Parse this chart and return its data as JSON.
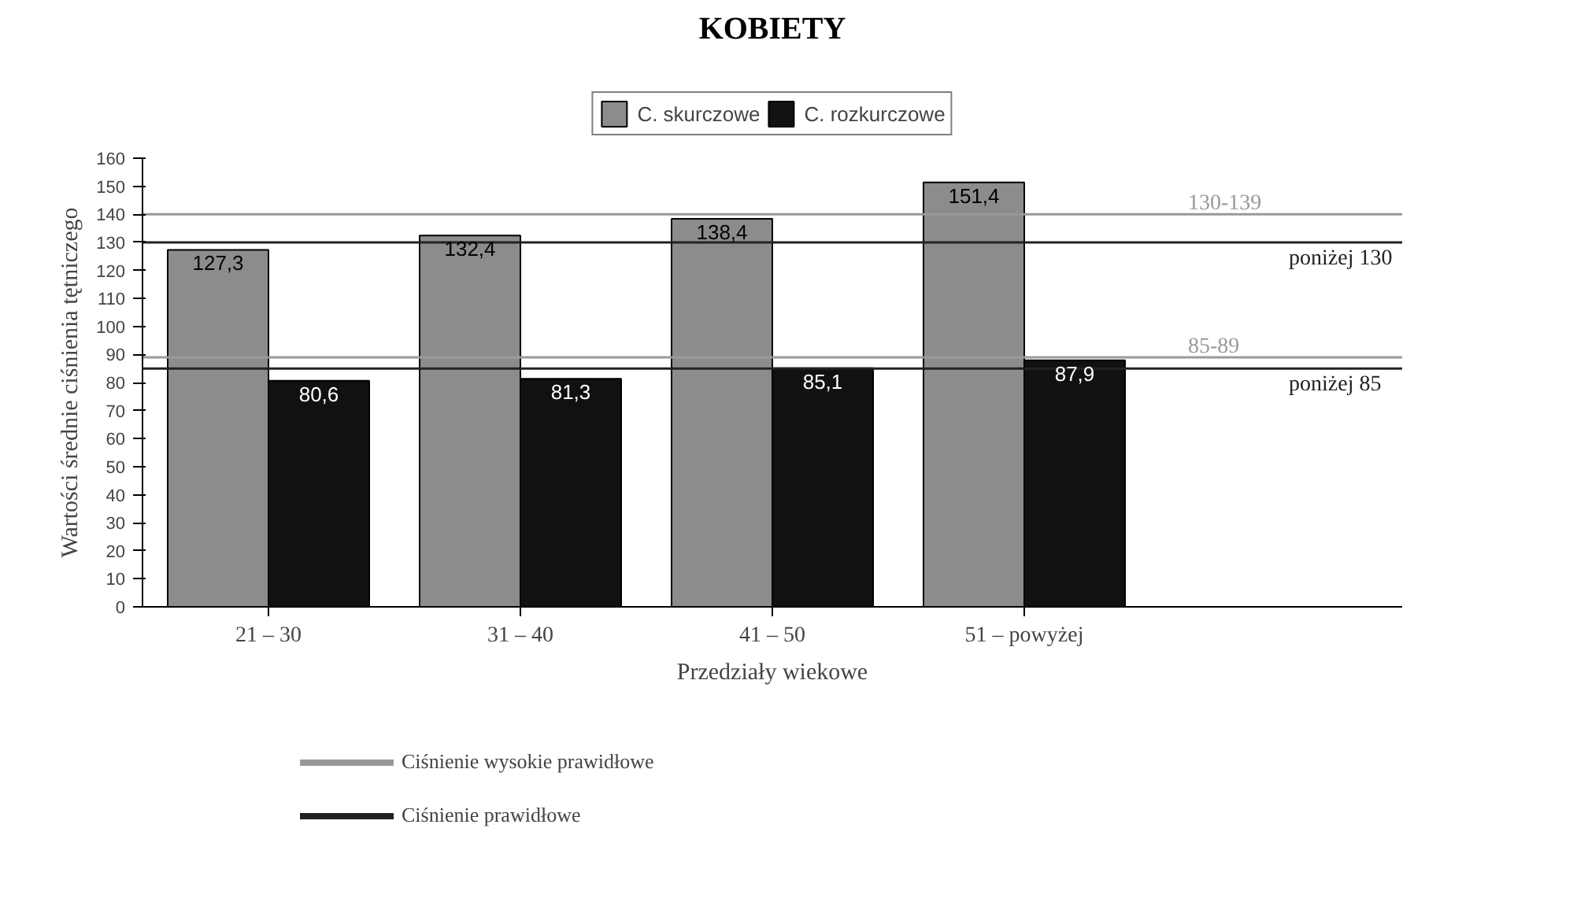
{
  "chart_data": {
    "type": "bar",
    "title": "KOBIETY",
    "xlabel": "Przedziały wiekowe",
    "ylabel": "Wartości średnie ciśnienia tętniczego",
    "categories": [
      "21 – 30",
      "31 – 40",
      "41 – 50",
      "51 – powyżej"
    ],
    "series": [
      {
        "name": "C. skurczowe",
        "color": "#8c8c8c",
        "values": [
          127.3,
          132.4,
          138.4,
          151.4
        ],
        "value_labels": [
          "127,3",
          "132,4",
          "138,4",
          "151,4"
        ]
      },
      {
        "name": "C. rozkurczowe",
        "color": "#111111",
        "values": [
          80.6,
          81.3,
          85.1,
          87.9
        ],
        "value_labels": [
          "80,6",
          "81,3",
          "85,1",
          "87,9"
        ]
      }
    ],
    "ylim": [
      0,
      160
    ],
    "yticks": [
      0,
      10,
      20,
      30,
      40,
      50,
      60,
      70,
      80,
      90,
      100,
      110,
      120,
      130,
      140,
      150,
      160
    ],
    "ref_lines": [
      {
        "axis": "y",
        "value": 140,
        "color": "#999999"
      },
      {
        "axis": "y",
        "value": 130,
        "label": "poniżej 130",
        "color": "#222222"
      },
      {
        "axis": "y",
        "value": 89,
        "color": "#999999"
      },
      {
        "axis": "y",
        "value": 85,
        "label": "poniżej 85",
        "color": "#222222"
      }
    ],
    "annotations": [
      {
        "text": "130-139",
        "y": 140
      },
      {
        "text": "85-89",
        "y": 89
      },
      "Ciśnienie wysokie prawidłowe",
      "Ciśnienie prawidłowe"
    ],
    "legend": "top",
    "grid": false
  }
}
